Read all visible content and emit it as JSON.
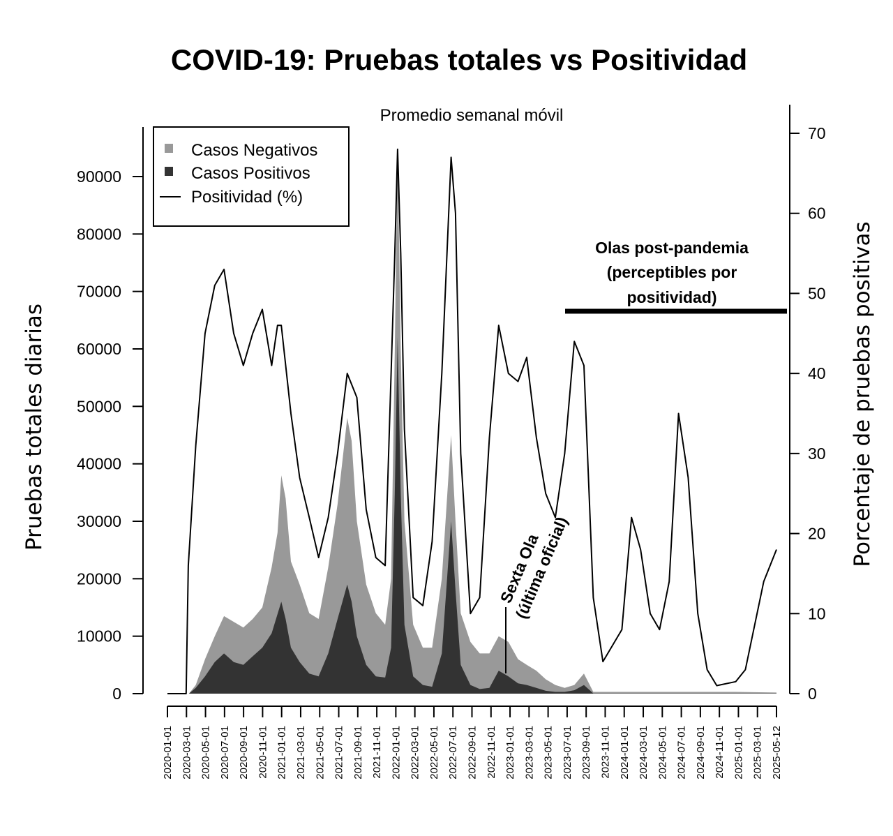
{
  "chart_data": {
    "type": "area",
    "title": "COVID-19: Pruebas totales vs Positividad",
    "subtitle": "Promedio semanal móvil",
    "ylabel": "Pruebas totales diarias",
    "ylabel_right": "Porcentaje de pruebas positivas",
    "ylim": [
      0,
      97000
    ],
    "ylim_right": [
      0,
      72
    ],
    "yticks": [
      "0",
      "10000",
      "20000",
      "30000",
      "40000",
      "50000",
      "60000",
      "70000",
      "80000",
      "90000"
    ],
    "yticks_right": [
      "0",
      "10",
      "20",
      "30",
      "40",
      "50",
      "60",
      "70"
    ],
    "xticks": [
      "2020-01-01",
      "2020-03-01",
      "2020-05-01",
      "2020-07-01",
      "2020-09-01",
      "2020-11-01",
      "2021-01-01",
      "2021-03-01",
      "2021-05-01",
      "2021-07-01",
      "2021-09-01",
      "2021-11-01",
      "2022-01-01",
      "2022-03-01",
      "2022-05-01",
      "2022-07-01",
      "2022-09-01",
      "2022-11-01",
      "2023-01-01",
      "2023-03-01",
      "2023-05-01",
      "2023-07-01",
      "2023-09-01",
      "2023-11-01",
      "2024-01-01",
      "2024-03-01",
      "2024-05-01",
      "2024-07-01",
      "2024-09-01",
      "2024-11-01",
      "2025-01-01",
      "2025-03-01",
      "2025-05-12"
    ],
    "legend": {
      "position": "top-left",
      "items": [
        {
          "label": "Casos Negativos",
          "color": "#999999"
        },
        {
          "label": "Casos Positivos",
          "color": "#333333"
        },
        {
          "label": "Positividad (%)",
          "color": "#000000"
        }
      ]
    },
    "series": [
      {
        "name": "Casos Negativos",
        "color": "#999999",
        "points": [
          [
            "2020-01-01",
            0
          ],
          [
            "2020-03-10",
            0
          ],
          [
            "2020-04-01",
            1500
          ],
          [
            "2020-05-01",
            6000
          ],
          [
            "2020-06-01",
            10000
          ],
          [
            "2020-07-01",
            13500
          ],
          [
            "2020-08-01",
            12500
          ],
          [
            "2020-09-01",
            11500
          ],
          [
            "2020-10-01",
            13000
          ],
          [
            "2020-11-01",
            15000
          ],
          [
            "2020-12-01",
            22000
          ],
          [
            "2020-12-20",
            28000
          ],
          [
            "2021-01-01",
            38000
          ],
          [
            "2021-01-15",
            34000
          ],
          [
            "2021-02-01",
            23000
          ],
          [
            "2021-03-01",
            19000
          ],
          [
            "2021-04-01",
            14000
          ],
          [
            "2021-05-01",
            13000
          ],
          [
            "2021-06-01",
            22000
          ],
          [
            "2021-07-01",
            33000
          ],
          [
            "2021-08-01",
            48000
          ],
          [
            "2021-08-15",
            44000
          ],
          [
            "2021-09-01",
            30000
          ],
          [
            "2021-10-01",
            19000
          ],
          [
            "2021-11-01",
            14000
          ],
          [
            "2021-12-01",
            12000
          ],
          [
            "2021-12-20",
            20000
          ],
          [
            "2022-01-01",
            60000
          ],
          [
            "2022-01-10",
            95000
          ],
          [
            "2022-01-20",
            60000
          ],
          [
            "2022-02-01",
            30000
          ],
          [
            "2022-03-01",
            12000
          ],
          [
            "2022-04-01",
            8000
          ],
          [
            "2022-05-01",
            8000
          ],
          [
            "2022-06-01",
            20000
          ],
          [
            "2022-07-01",
            45000
          ],
          [
            "2022-07-15",
            30000
          ],
          [
            "2022-08-01",
            14000
          ],
          [
            "2022-09-01",
            9000
          ],
          [
            "2022-10-01",
            7000
          ],
          [
            "2022-11-01",
            7000
          ],
          [
            "2022-12-01",
            10000
          ],
          [
            "2023-01-01",
            9000
          ],
          [
            "2023-02-01",
            6000
          ],
          [
            "2023-03-01",
            5000
          ],
          [
            "2023-04-01",
            4000
          ],
          [
            "2023-05-01",
            2500
          ],
          [
            "2023-06-01",
            1500
          ],
          [
            "2023-07-01",
            1000
          ],
          [
            "2023-08-01",
            1500
          ],
          [
            "2023-09-01",
            3500
          ],
          [
            "2023-10-01",
            300
          ],
          [
            "2024-01-01",
            300
          ],
          [
            "2024-03-01",
            300
          ],
          [
            "2024-07-01",
            300
          ],
          [
            "2025-01-01",
            300
          ],
          [
            "2025-05-12",
            200
          ]
        ]
      },
      {
        "name": "Casos Positivos",
        "color": "#333333",
        "points": [
          [
            "2020-01-01",
            0
          ],
          [
            "2020-03-10",
            0
          ],
          [
            "2020-04-01",
            1000
          ],
          [
            "2020-05-01",
            3000
          ],
          [
            "2020-06-01",
            5500
          ],
          [
            "2020-07-01",
            7000
          ],
          [
            "2020-08-01",
            5500
          ],
          [
            "2020-09-01",
            5000
          ],
          [
            "2020-10-01",
            6500
          ],
          [
            "2020-11-01",
            8000
          ],
          [
            "2020-12-01",
            10500
          ],
          [
            "2021-01-01",
            16000
          ],
          [
            "2021-01-15",
            13000
          ],
          [
            "2021-02-01",
            8000
          ],
          [
            "2021-03-01",
            5500
          ],
          [
            "2021-04-01",
            3500
          ],
          [
            "2021-05-01",
            3000
          ],
          [
            "2021-06-01",
            7000
          ],
          [
            "2021-07-01",
            13000
          ],
          [
            "2021-08-01",
            19000
          ],
          [
            "2021-08-15",
            16000
          ],
          [
            "2021-09-01",
            10000
          ],
          [
            "2021-10-01",
            5000
          ],
          [
            "2021-11-01",
            3000
          ],
          [
            "2021-12-01",
            2800
          ],
          [
            "2021-12-20",
            8000
          ],
          [
            "2022-01-01",
            35000
          ],
          [
            "2022-01-10",
            62000
          ],
          [
            "2022-01-20",
            35000
          ],
          [
            "2022-02-01",
            12000
          ],
          [
            "2022-03-01",
            3000
          ],
          [
            "2022-04-01",
            1500
          ],
          [
            "2022-05-01",
            1200
          ],
          [
            "2022-06-01",
            7000
          ],
          [
            "2022-07-01",
            30000
          ],
          [
            "2022-07-15",
            18000
          ],
          [
            "2022-08-01",
            5000
          ],
          [
            "2022-09-01",
            1500
          ],
          [
            "2022-10-01",
            800
          ],
          [
            "2022-11-01",
            1000
          ],
          [
            "2022-12-01",
            4000
          ],
          [
            "2023-01-01",
            3000
          ],
          [
            "2023-02-01",
            1800
          ],
          [
            "2023-03-01",
            1500
          ],
          [
            "2023-04-01",
            1000
          ],
          [
            "2023-05-01",
            500
          ],
          [
            "2023-06-01",
            300
          ],
          [
            "2023-07-01",
            300
          ],
          [
            "2023-08-01",
            600
          ],
          [
            "2023-09-01",
            1500
          ],
          [
            "2023-10-01",
            50
          ],
          [
            "2025-05-12",
            50
          ]
        ]
      },
      {
        "name": "Positividad (%)",
        "axis": "right",
        "color": "#000000",
        "points": [
          [
            "2020-01-01",
            0
          ],
          [
            "2020-03-01",
            0
          ],
          [
            "2020-03-08",
            16
          ],
          [
            "2020-04-01",
            31
          ],
          [
            "2020-05-01",
            45
          ],
          [
            "2020-06-01",
            51
          ],
          [
            "2020-07-01",
            53
          ],
          [
            "2020-08-01",
            45
          ],
          [
            "2020-09-01",
            41
          ],
          [
            "2020-10-01",
            45
          ],
          [
            "2020-11-01",
            48
          ],
          [
            "2020-12-01",
            41
          ],
          [
            "2020-12-20",
            46
          ],
          [
            "2021-01-01",
            46
          ],
          [
            "2021-02-01",
            35
          ],
          [
            "2021-03-01",
            27
          ],
          [
            "2021-04-01",
            22
          ],
          [
            "2021-05-01",
            17
          ],
          [
            "2021-06-01",
            22
          ],
          [
            "2021-07-01",
            30
          ],
          [
            "2021-08-01",
            40
          ],
          [
            "2021-09-01",
            37
          ],
          [
            "2021-10-01",
            23
          ],
          [
            "2021-11-01",
            17
          ],
          [
            "2021-12-01",
            16
          ],
          [
            "2022-01-01",
            55
          ],
          [
            "2022-01-10",
            68
          ],
          [
            "2022-01-20",
            55
          ],
          [
            "2022-02-01",
            33
          ],
          [
            "2022-03-01",
            12
          ],
          [
            "2022-04-01",
            11
          ],
          [
            "2022-05-01",
            19
          ],
          [
            "2022-06-01",
            40
          ],
          [
            "2022-07-01",
            67
          ],
          [
            "2022-07-15",
            60
          ],
          [
            "2022-08-01",
            30
          ],
          [
            "2022-09-01",
            10
          ],
          [
            "2022-10-01",
            12
          ],
          [
            "2022-11-01",
            32
          ],
          [
            "2022-12-01",
            46
          ],
          [
            "2023-01-01",
            40
          ],
          [
            "2023-02-01",
            39
          ],
          [
            "2023-03-01",
            42
          ],
          [
            "2023-04-01",
            32
          ],
          [
            "2023-05-01",
            25
          ],
          [
            "2023-06-01",
            22
          ],
          [
            "2023-07-01",
            30
          ],
          [
            "2023-08-01",
            44
          ],
          [
            "2023-09-01",
            41
          ],
          [
            "2023-10-01",
            12
          ],
          [
            "2023-11-01",
            4
          ],
          [
            "2024-01-01",
            8
          ],
          [
            "2024-02-01",
            22
          ],
          [
            "2024-03-01",
            18
          ],
          [
            "2024-04-01",
            10
          ],
          [
            "2024-05-01",
            8
          ],
          [
            "2024-06-01",
            14
          ],
          [
            "2024-07-01",
            35
          ],
          [
            "2024-08-01",
            27
          ],
          [
            "2024-09-01",
            10
          ],
          [
            "2024-10-01",
            3
          ],
          [
            "2024-11-01",
            1
          ],
          [
            "2025-01-01",
            1.5
          ],
          [
            "2025-02-01",
            3
          ],
          [
            "2025-04-01",
            14
          ],
          [
            "2025-05-12",
            18
          ]
        ]
      }
    ],
    "annotations": [
      {
        "text": [
          "Olas post-pandemia",
          "(perceptibles por",
          "positividad)"
        ],
        "x_range": [
          "2023-07-01",
          "2025-05-12"
        ],
        "y_right": 48
      },
      {
        "text": [
          "Sexta Ola",
          "(última oficial)"
        ],
        "x": "2022-12-01"
      }
    ],
    "grid": false
  }
}
